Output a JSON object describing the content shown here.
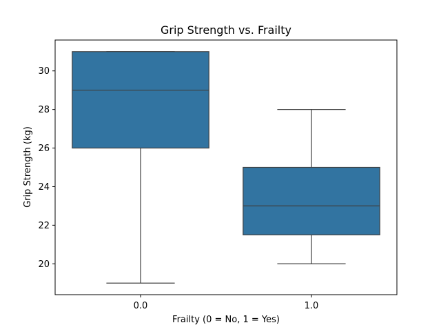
{
  "chart_data": {
    "type": "box",
    "title": "Grip Strength vs. Frailty",
    "xlabel": "Frailty (0 = No, 1 = Yes)",
    "ylabel": "Grip Strength (kg)",
    "categories": [
      "0.0",
      "1.0"
    ],
    "ylim": [
      18.4,
      31.6
    ],
    "yticks": [
      20,
      22,
      24,
      26,
      28,
      30
    ],
    "grid": false,
    "box_color": "#3274a1",
    "line_color": "#3f3f3f",
    "boxes": [
      {
        "category": "0.0",
        "whisker_low": 19,
        "q1": 26,
        "median": 29,
        "q3": 31,
        "whisker_high": 31
      },
      {
        "category": "1.0",
        "whisker_low": 20,
        "q1": 21.5,
        "median": 23,
        "q3": 25,
        "whisker_high": 28
      }
    ]
  }
}
